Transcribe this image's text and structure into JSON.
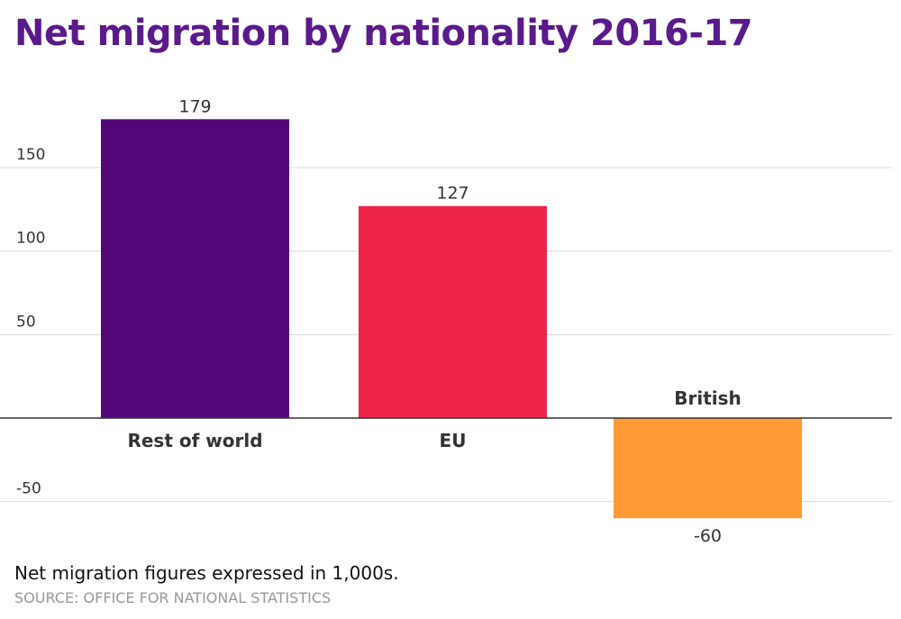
{
  "chart_data": {
    "type": "bar",
    "title": "Net migration by nationality 2016-17",
    "categories": [
      "Rest of world",
      "EU",
      "British"
    ],
    "values": [
      179,
      127,
      -60
    ],
    "colors": [
      "#520677",
      "#ee2449",
      "#ff9b35"
    ],
    "yticks": [
      -50,
      50,
      100,
      150
    ],
    "ylim": [
      -60,
      179
    ],
    "grid": true,
    "xlabel": "",
    "ylabel": ""
  },
  "note": "Net migration figures expressed in 1,000s.",
  "source": "SOURCE: OFFICE FOR NATIONAL STATISTICS"
}
